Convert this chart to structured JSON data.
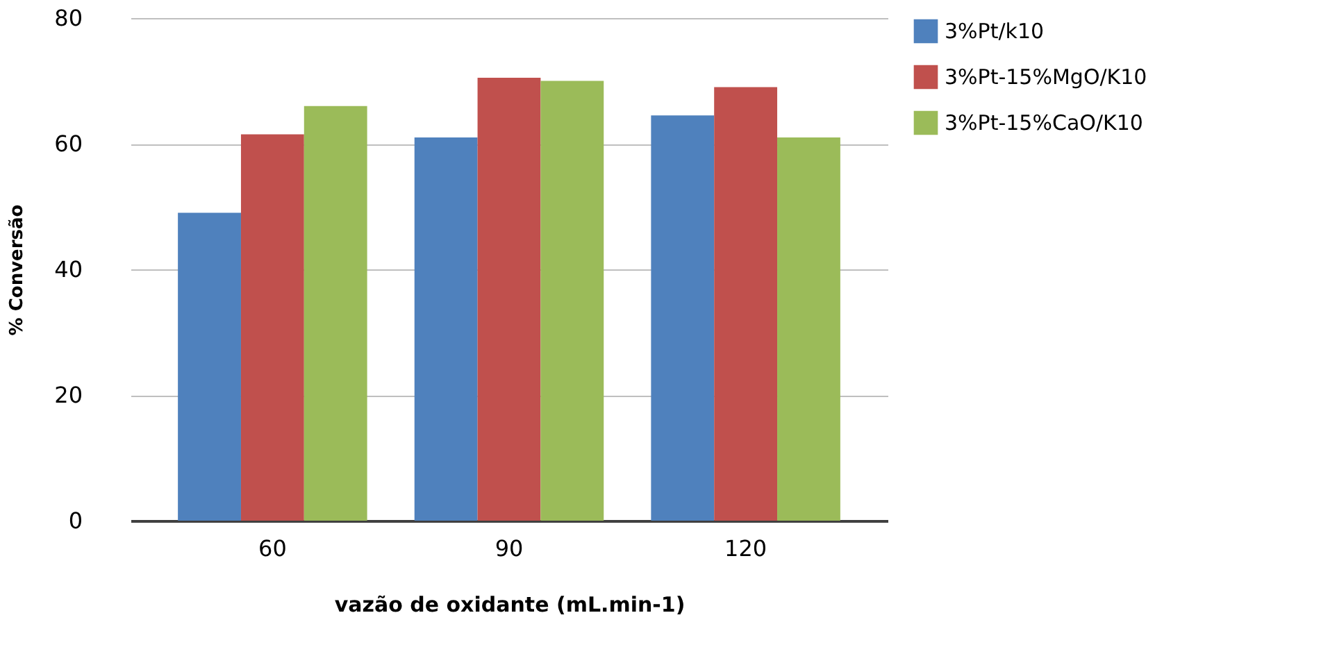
{
  "chart_data": {
    "type": "bar",
    "xlabel": "vazão  de oxidante (mL.min-1)",
    "ylabel": "% Conversão",
    "categories": [
      "60",
      "90",
      "120"
    ],
    "series": [
      {
        "name": "3%Pt/k10",
        "color": "#4f81bd",
        "values": [
          49,
          61,
          64.5
        ]
      },
      {
        "name": "3%Pt-15%MgO/K10",
        "color": "#c0504d",
        "values": [
          61.5,
          70.5,
          69
        ]
      },
      {
        "name": "3%Pt-15%CaO/K10",
        "color": "#9bbb59",
        "values": [
          66,
          70,
          61
        ]
      }
    ],
    "ylim": [
      0,
      80
    ],
    "yticks": [
      0,
      20,
      40,
      60,
      80
    ],
    "grid": "y",
    "legend": "right"
  }
}
